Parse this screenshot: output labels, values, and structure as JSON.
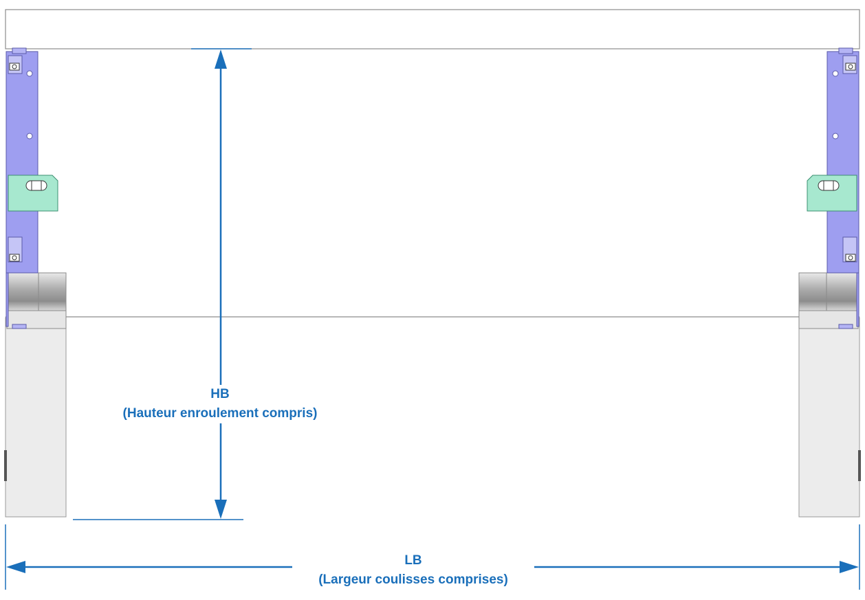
{
  "colors": {
    "dimension_line": "#1a6fba",
    "dimension_text": "#1a6fba",
    "rail_bracket": "#9e9ef0",
    "clip_bracket": "#a7e8cf",
    "roll_box": "#ececec",
    "outline": "#8c8c8c"
  },
  "dimensions": {
    "height": {
      "code": "HB",
      "description": "(Hauteur enroulement compris)"
    },
    "width": {
      "code": "LB",
      "description": "(Largeur coulisses comprises)"
    }
  }
}
